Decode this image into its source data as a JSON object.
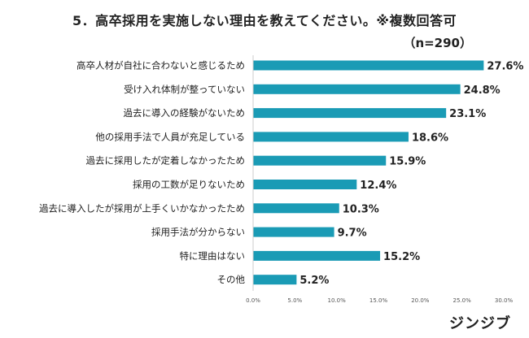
{
  "title": "5．高卒採用を実施しない理由を教えてください。※複数回答可",
  "subtitle": "（n=290）",
  "logo_text": "ジンジブ",
  "colors": {
    "bar": "#1a9bb5",
    "axis": "#cccccc"
  },
  "chart_data": {
    "type": "bar",
    "orientation": "horizontal",
    "categories": [
      "高卒人材が自社に合わないと感じるため",
      "受け入れ体制が整っていない",
      "過去に導入の経験がないため",
      "他の採用手法で人員が充足している",
      "過去に採用したが定着しなかったため",
      "採用の工数が足りないため",
      "過去に導入したが採用が上手くいかなかったため",
      "採用手法が分からない",
      "特に理由はない",
      "その他"
    ],
    "values": [
      27.6,
      24.8,
      23.1,
      18.6,
      15.9,
      12.4,
      10.3,
      9.7,
      15.2,
      5.2
    ],
    "value_labels": [
      "27.6%",
      "24.8%",
      "23.1%",
      "18.6%",
      "15.9%",
      "12.4%",
      "10.3%",
      "9.7%",
      "15.2%",
      "5.2%"
    ],
    "xlim": [
      0,
      30
    ],
    "xticks": [
      "0.0%",
      "5.0%",
      "10.0%",
      "15.0%",
      "20.0%",
      "25.0%",
      "30.0%"
    ],
    "xlabel": "",
    "ylabel": "",
    "grid": false,
    "legend": "none"
  }
}
